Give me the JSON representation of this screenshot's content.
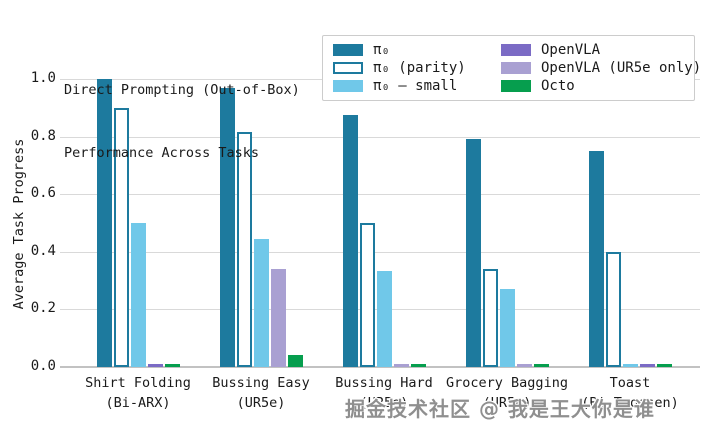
{
  "watermark": "掘金技术社区 @ 我是王大你是谁",
  "chart_data": {
    "type": "bar",
    "title_lines": [
      "Direct Prompting (Out-of-Box)",
      "Performance Across Tasks"
    ],
    "ylabel": "Average Task Progress",
    "xlabel": "",
    "ylim": [
      0.0,
      1.0
    ],
    "yticks": [
      0.0,
      0.2,
      0.4,
      0.6,
      0.8,
      1.0
    ],
    "grid": "horizontal",
    "legend_position": "upper-right, two columns",
    "categories": [
      "Shirt Folding\n(Bi-ARX)",
      "Bussing Easy\n(UR5e)",
      "Bussing Hard\n(UR5e)",
      "Grocery Bagging\n(UR5e)",
      "Toast\n(Bi-Trossen)"
    ],
    "series": [
      {
        "name": "π₀",
        "color": "#1d7a9e",
        "style": "filled",
        "values": [
          1.0,
          0.97,
          0.875,
          0.79,
          0.75
        ]
      },
      {
        "name": "π₀ (parity)",
        "color": "#1d7a9e",
        "style": "outline",
        "values": [
          0.9,
          0.815,
          0.5,
          0.34,
          0.4
        ]
      },
      {
        "name": "π₀ – small",
        "color": "#70c8e9",
        "style": "filled",
        "values": [
          0.5,
          0.445,
          0.335,
          0.27,
          0.01
        ]
      },
      {
        "name": "OpenVLA",
        "color": "#7b6bc5",
        "style": "filled",
        "values": [
          0.01,
          null,
          null,
          null,
          0.01
        ]
      },
      {
        "name": "OpenVLA (UR5e only)",
        "color": "#a9a0d2",
        "style": "filled",
        "values": [
          null,
          0.34,
          0.01,
          0.01,
          null
        ]
      },
      {
        "name": "Octo",
        "color": "#069e4e",
        "style": "filled",
        "values": [
          0.01,
          0.04,
          0.01,
          0.01,
          0.01
        ]
      }
    ]
  },
  "layout_note": "bars are packed per category; series with null value draw no bar"
}
